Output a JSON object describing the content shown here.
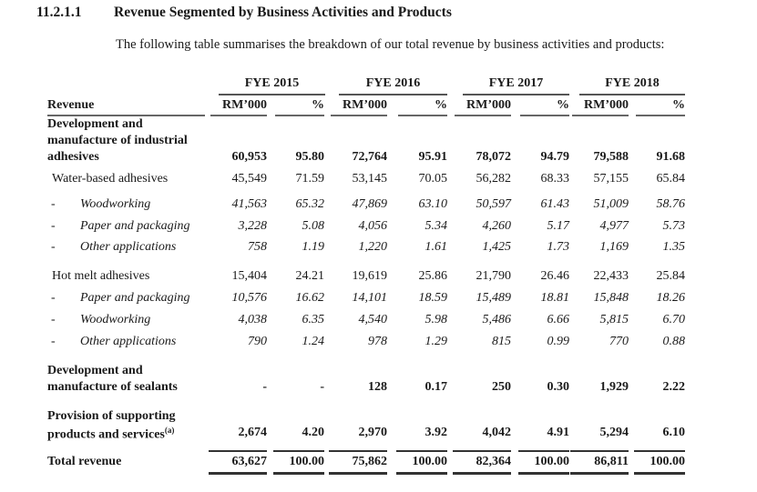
{
  "section": {
    "number": "11.2.1.1",
    "title": "Revenue Segmented by Business Activities and Products"
  },
  "intro": "The following table summarises the breakdown of our total revenue by business activities and products:",
  "table": {
    "years": [
      "FYE 2015",
      "FYE 2016",
      "FYE 2017",
      "FYE 2018"
    ],
    "row_header": "Revenue",
    "unit_headers": [
      "RM’000",
      "%"
    ],
    "rows": [
      {
        "label": [
          "Development and",
          "manufacture of industrial",
          "adhesives"
        ],
        "style": "bold",
        "values": [
          "60,953",
          "95.80",
          "72,764",
          "95.91",
          "78,072",
          "94.79",
          "79,588",
          "91.68"
        ]
      },
      {
        "label": [
          "Water-based adhesives"
        ],
        "style": "normal",
        "values": [
          "45,549",
          "71.59",
          "53,145",
          "70.05",
          "56,282",
          "68.33",
          "57,155",
          "65.84"
        ]
      },
      {
        "label": [
          "Woodworking"
        ],
        "style": "italic",
        "bullet": "-",
        "values": [
          "41,563",
          "65.32",
          "47,869",
          "63.10",
          "50,597",
          "61.43",
          "51,009",
          "58.76"
        ]
      },
      {
        "label": [
          "Paper and packaging"
        ],
        "style": "italic",
        "bullet": "-",
        "values": [
          "3,228",
          "5.08",
          "4,056",
          "5.34",
          "4,260",
          "5.17",
          "4,977",
          "5.73"
        ]
      },
      {
        "label": [
          "Other applications"
        ],
        "style": "italic",
        "bullet": "-",
        "values": [
          "758",
          "1.19",
          "1,220",
          "1.61",
          "1,425",
          "1.73",
          "1,169",
          "1.35"
        ]
      },
      {
        "label": [
          "Hot melt adhesives"
        ],
        "style": "normal",
        "values": [
          "15,404",
          "24.21",
          "19,619",
          "25.86",
          "21,790",
          "26.46",
          "22,433",
          "25.84"
        ]
      },
      {
        "label": [
          "Paper and packaging"
        ],
        "style": "italic",
        "bullet": "-",
        "values": [
          "10,576",
          "16.62",
          "14,101",
          "18.59",
          "15,489",
          "18.81",
          "15,848",
          "18.26"
        ]
      },
      {
        "label": [
          "Woodworking"
        ],
        "style": "italic",
        "bullet": "-",
        "values": [
          "4,038",
          "6.35",
          "4,540",
          "5.98",
          "5,486",
          "6.66",
          "5,815",
          "6.70"
        ]
      },
      {
        "label": [
          "Other applications"
        ],
        "style": "italic",
        "bullet": "-",
        "values": [
          "790",
          "1.24",
          "978",
          "1.29",
          "815",
          "0.99",
          "770",
          "0.88"
        ]
      },
      {
        "label": [
          "Development and",
          "manufacture of sealants"
        ],
        "style": "bold",
        "values": [
          "-",
          "-",
          "128",
          "0.17",
          "250",
          "0.30",
          "1,929",
          "2.22"
        ]
      },
      {
        "label": [
          "Provision of supporting",
          "products and services"
        ],
        "footnote": "(a)",
        "style": "bold",
        "values": [
          "2,674",
          "4.20",
          "2,970",
          "3.92",
          "4,042",
          "4.91",
          "5,294",
          "6.10"
        ]
      },
      {
        "label": [
          "Total revenue"
        ],
        "style": "bold",
        "total": true,
        "values": [
          "63,627",
          "100.00",
          "75,862",
          "100.00",
          "82,364",
          "100.00",
          "86,811",
          "100.00"
        ]
      }
    ]
  }
}
